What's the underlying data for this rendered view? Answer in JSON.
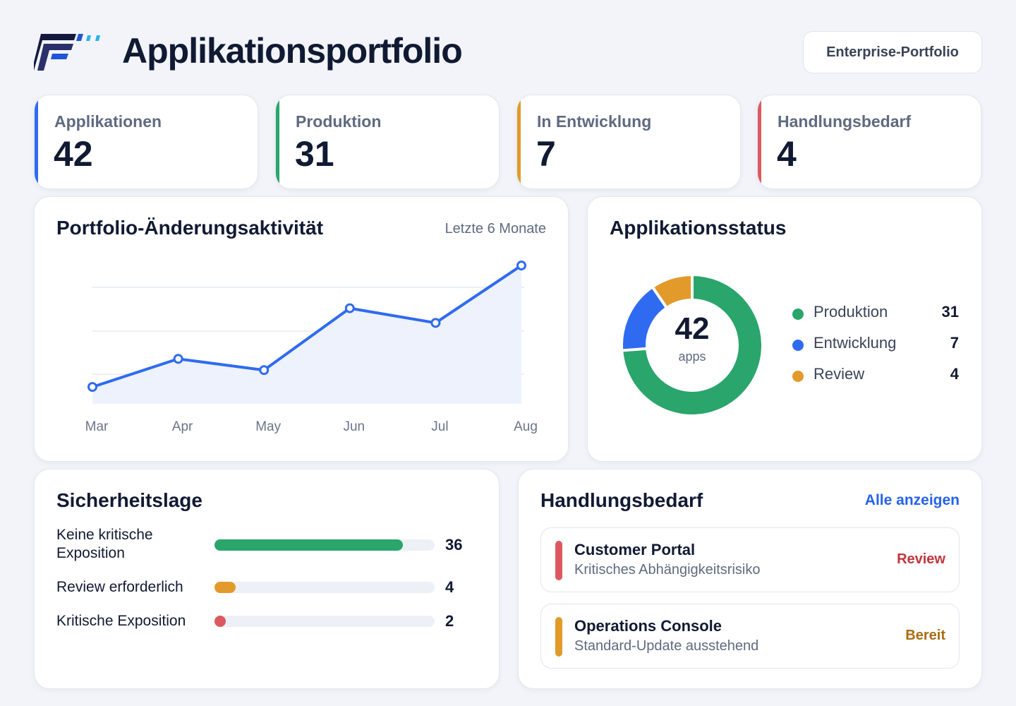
{
  "header": {
    "title": "Applikationsportfolio",
    "portfolio_button": "Enterprise-Portfolio"
  },
  "kpis": [
    {
      "label": "Applikationen",
      "value": "42",
      "color": "#2f6bf0"
    },
    {
      "label": "Produktion",
      "value": "31",
      "color": "#2aa56b"
    },
    {
      "label": "In Entwicklung",
      "value": "7",
      "color": "#e29a2a"
    },
    {
      "label": "Handlungsbedarf",
      "value": "4",
      "color": "#dc5a5f"
    }
  ],
  "activity": {
    "title": "Portfolio-Änderungsaktivität",
    "period": "Letzte 6 Monate"
  },
  "status": {
    "title": "Applikationsstatus",
    "center_value": "42",
    "center_label": "apps",
    "legend": [
      {
        "label": "Produktion",
        "value": "31",
        "color": "#2aa56b"
      },
      {
        "label": "Entwicklung",
        "value": "7",
        "color": "#2f6bf0"
      },
      {
        "label": "Review",
        "value": "4",
        "color": "#e29a2a"
      }
    ]
  },
  "security": {
    "title": "Sicherheitslage",
    "max": 42,
    "rows": [
      {
        "label": "Keine kritische Exposition",
        "value": 36,
        "color": "#2aa56b"
      },
      {
        "label": "Review erforderlich",
        "value": 4,
        "color": "#e29a2a"
      },
      {
        "label": "Kritische Exposition",
        "value": 2,
        "color": "#dc5a5f"
      }
    ]
  },
  "actions": {
    "title": "Handlungsbedarf",
    "view_all": "Alle anzeigen",
    "items": [
      {
        "name": "Customer Portal",
        "description": "Kritisches Abhängigkeitsrisiko",
        "status": "Review",
        "color": "#dc5a5f",
        "status_color": "#c2353e"
      },
      {
        "name": "Operations Console",
        "description": "Standard-Update ausstehend",
        "status": "Bereit",
        "color": "#e29a2a",
        "status_color": "#a86d10"
      }
    ]
  },
  "chart_data": [
    {
      "type": "area",
      "categories": [
        "Mar",
        "Apr",
        "May",
        "Jun",
        "Jul",
        "Aug"
      ],
      "series": [
        {
          "values": [
            1.5,
            4.0,
            3.0,
            8.5,
            7.2,
            12.3
          ]
        }
      ],
      "ylim": [
        0,
        14
      ],
      "grid": true,
      "colors": {
        "line": "#2f6bf0",
        "fill": "#edf2fd",
        "grid": "#e6e9f1"
      }
    },
    {
      "type": "pie",
      "categories": [
        "Produktion",
        "Entwicklung",
        "Review"
      ],
      "values": [
        31,
        7,
        4
      ],
      "colors": [
        "#2aa56b",
        "#2f6bf0",
        "#e29a2a"
      ]
    }
  ]
}
